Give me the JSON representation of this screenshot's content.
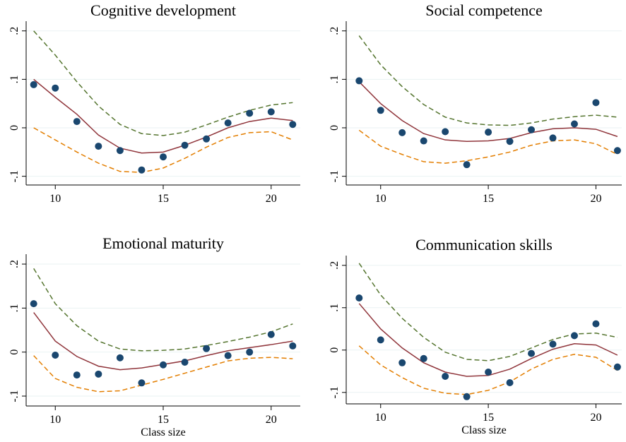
{
  "chart_data": [
    {
      "type": "line",
      "title": "Cognitive development",
      "x": [
        9,
        10,
        11,
        12,
        13,
        14,
        15,
        16,
        17,
        18,
        19,
        20,
        21
      ],
      "xlim": [
        8.65,
        21.35
      ],
      "xticks": [
        10,
        15,
        20
      ],
      "ylim": [
        -0.118,
        0.22
      ],
      "yticks": [
        {
          "value": 0.2,
          "label": ".2"
        },
        {
          "value": 0.1,
          "label": ".1"
        },
        0,
        {
          "value": -0.1,
          "label": "-.1"
        }
      ],
      "grid": true,
      "series": [
        {
          "style": "points",
          "color": "#1a476f",
          "values": [
            0.089,
            0.082,
            0.013,
            -0.038,
            -0.047,
            -0.087,
            -0.06,
            -0.036,
            -0.023,
            0.01,
            0.03,
            0.033,
            0.007
          ]
        },
        {
          "style": "solid",
          "color": "#90353b",
          "values": [
            0.1,
            0.063,
            0.028,
            -0.015,
            -0.042,
            -0.052,
            -0.05,
            -0.036,
            -0.019,
            0,
            0.013,
            0.02,
            0.015
          ]
        },
        {
          "style": "dashed",
          "color": "#55752f",
          "values": [
            0.2,
            0.15,
            0.095,
            0.045,
            0.007,
            -0.012,
            -0.016,
            -0.009,
            0.006,
            0.022,
            0.036,
            0.047,
            0.052
          ]
        },
        {
          "style": "dashed",
          "color": "#e37e00",
          "values": [
            0,
            -0.025,
            -0.05,
            -0.073,
            -0.09,
            -0.092,
            -0.083,
            -0.063,
            -0.04,
            -0.02,
            -0.01,
            -0.008,
            -0.025
          ]
        }
      ]
    },
    {
      "type": "line",
      "title": "Social competence",
      "x": [
        9,
        10,
        11,
        12,
        13,
        14,
        15,
        16,
        17,
        18,
        19,
        20,
        21
      ],
      "xlim": [
        8.4,
        21.2
      ],
      "xticks": [
        10,
        15,
        20
      ],
      "ylim": [
        -0.118,
        0.22
      ],
      "yticks": [
        {
          "value": 0.2,
          "label": ".2"
        },
        {
          "value": 0.1,
          "label": ".1"
        },
        0,
        {
          "value": -0.1,
          "label": "-.1"
        }
      ],
      "grid": true,
      "series": [
        {
          "style": "points",
          "color": "#1a476f",
          "values": [
            0.097,
            0.036,
            -0.01,
            -0.027,
            -0.008,
            -0.076,
            -0.009,
            -0.028,
            -0.004,
            -0.021,
            0.008,
            0.052,
            -0.047
          ]
        },
        {
          "style": "solid",
          "color": "#90353b",
          "values": [
            0.095,
            0.05,
            0.015,
            -0.012,
            -0.025,
            -0.028,
            -0.027,
            -0.022,
            -0.01,
            -0.002,
            0,
            -0.003,
            -0.018
          ]
        },
        {
          "style": "dashed",
          "color": "#55752f",
          "values": [
            0.19,
            0.13,
            0.085,
            0.048,
            0.022,
            0.01,
            0.006,
            0.005,
            0.01,
            0.018,
            0.023,
            0.026,
            0.022
          ]
        },
        {
          "style": "dashed",
          "color": "#e37e00",
          "values": [
            -0.005,
            -0.038,
            -0.055,
            -0.07,
            -0.073,
            -0.068,
            -0.06,
            -0.05,
            -0.036,
            -0.027,
            -0.025,
            -0.033,
            -0.055
          ]
        }
      ]
    },
    {
      "type": "line",
      "title": "Emotional maturity",
      "xlabel": "Class size",
      "x": [
        9,
        10,
        11,
        12,
        13,
        14,
        15,
        16,
        17,
        18,
        19,
        20,
        21
      ],
      "xlim": [
        8.65,
        21.35
      ],
      "xticks": [
        10,
        15,
        20
      ],
      "ylim": [
        -0.1225,
        0.2225
      ],
      "yticks": [
        {
          "value": 0.2,
          "label": ".2"
        },
        {
          "value": 0.1,
          "label": ".1"
        },
        0,
        {
          "value": -0.1,
          "label": "-.1"
        }
      ],
      "grid": true,
      "series": [
        {
          "style": "points",
          "color": "#1a476f",
          "values": [
            0.11,
            -0.007,
            -0.052,
            -0.05,
            -0.013,
            -0.07,
            -0.029,
            -0.023,
            0.008,
            -0.008,
            0,
            0.04,
            0.014
          ]
        },
        {
          "style": "solid",
          "color": "#90353b",
          "values": [
            0.09,
            0.025,
            -0.01,
            -0.032,
            -0.04,
            -0.036,
            -0.028,
            -0.02,
            -0.008,
            0.003,
            0.01,
            0.017,
            0.025
          ]
        },
        {
          "style": "dashed",
          "color": "#55752f",
          "values": [
            0.19,
            0.11,
            0.06,
            0.025,
            0.007,
            0.003,
            0.004,
            0.007,
            0.015,
            0.024,
            0.034,
            0.046,
            0.064
          ]
        },
        {
          "style": "dashed",
          "color": "#e37e00",
          "values": [
            -0.008,
            -0.06,
            -0.08,
            -0.09,
            -0.088,
            -0.075,
            -0.062,
            -0.048,
            -0.034,
            -0.02,
            -0.014,
            -0.012,
            -0.015
          ]
        }
      ]
    },
    {
      "type": "line",
      "title": "Communication skills",
      "xlabel": "Class size",
      "x": [
        9,
        10,
        11,
        12,
        13,
        14,
        15,
        16,
        17,
        18,
        19,
        20,
        21
      ],
      "xlim": [
        8.4,
        21.2
      ],
      "xticks": [
        10,
        15,
        20
      ],
      "ylim": [
        -0.127,
        0.223
      ],
      "yticks": [
        {
          "value": 0.2,
          "label": ".2"
        },
        {
          "value": 0.1,
          "label": ".1"
        },
        0,
        {
          "value": -0.1,
          "label": "-.1"
        }
      ],
      "grid": true,
      "series": [
        {
          "style": "points",
          "color": "#1a476f",
          "values": [
            0.123,
            0.024,
            -0.03,
            -0.02,
            -0.062,
            -0.11,
            -0.052,
            -0.077,
            -0.008,
            0.014,
            0.034,
            0.062,
            -0.04
          ]
        },
        {
          "style": "solid",
          "color": "#90353b",
          "values": [
            0.11,
            0.05,
            0.005,
            -0.03,
            -0.052,
            -0.062,
            -0.06,
            -0.045,
            -0.02,
            0.002,
            0.015,
            0.012,
            -0.012
          ]
        },
        {
          "style": "dashed",
          "color": "#55752f",
          "values": [
            0.205,
            0.13,
            0.075,
            0.03,
            -0.005,
            -0.022,
            -0.025,
            -0.015,
            0.005,
            0.025,
            0.038,
            0.04,
            0.03
          ]
        },
        {
          "style": "dashed",
          "color": "#e37e00",
          "values": [
            0.01,
            -0.035,
            -0.065,
            -0.09,
            -0.102,
            -0.105,
            -0.095,
            -0.075,
            -0.045,
            -0.022,
            -0.01,
            -0.017,
            -0.048
          ]
        }
      ]
    }
  ]
}
